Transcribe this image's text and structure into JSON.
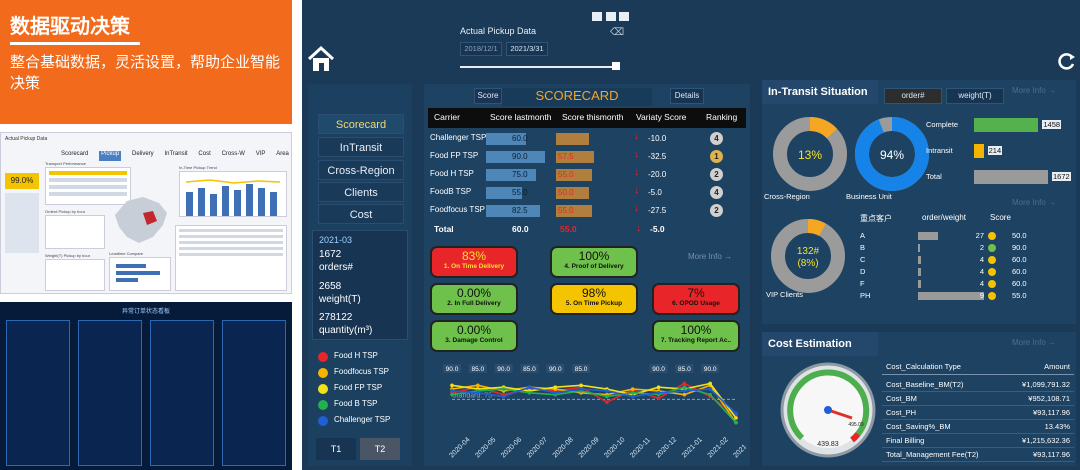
{
  "banner": {
    "title": "数据驱动决策",
    "subtitle": "整合基础数据，灵活设置，帮助企业智能决策"
  },
  "thumb1": {
    "title": "Actual Pickup Data",
    "tabs": [
      "Scorecard",
      "Pickup",
      "Delivery",
      "InTransit",
      "Cost",
      "Cross-W",
      "VIP",
      "Area"
    ],
    "kpi": "99.0%",
    "panels": [
      "Transport Performance",
      "In-Time Pickup Trend",
      "Order# Pickup by hour",
      "Weight(T) Pickup by hour",
      "Leadtime Compare"
    ]
  },
  "thumb2": {
    "title": "异常订单状态看板"
  },
  "header": {
    "actual_pickup": "Actual Pickup Data",
    "date_from": "2018/12/1",
    "date_to": "2021/3/31"
  },
  "nav": {
    "items": [
      "Scorecard",
      "InTransit",
      "Cross-Region",
      "Clients",
      "Cost"
    ]
  },
  "summary": {
    "period": "2021-03",
    "orders_value": "1672",
    "orders_label": "orders#",
    "weight_value": "2658",
    "weight_label": "weight(T)",
    "quantity_value": "278122",
    "quantity_label": "quantity(m³)"
  },
  "legend": [
    {
      "name": "Food H TSP",
      "color": "#e8262a"
    },
    {
      "name": "Foodfocus TSP",
      "color": "#f5b400"
    },
    {
      "name": "Food FP TSP",
      "color": "#f2e21a"
    },
    {
      "name": "Food B TSP",
      "color": "#22b14c"
    },
    {
      "name": "Challenger TSP",
      "color": "#1f5fd6"
    }
  ],
  "period_buttons": [
    "T1",
    "T2"
  ],
  "scorecard": {
    "title": "SCORECARD",
    "score_btn": "Score",
    "details_btn": "Details",
    "columns": [
      "Carrier",
      "Score lastmonth",
      "Score thismonth",
      "Variaty Score",
      "Ranking"
    ],
    "rows": [
      {
        "carrier": "Challenger TSP",
        "last": "60.0",
        "this": "",
        "var": "-10.0",
        "rank": "4",
        "last_v": 60,
        "this_v": 50
      },
      {
        "carrier": "Food FP TSP",
        "last": "90.0",
        "this": "57.5",
        "var": "-32.5",
        "rank": "1",
        "last_v": 90,
        "this_v": 57.5
      },
      {
        "carrier": "Food H TSP",
        "last": "75.0",
        "this": "55.0",
        "var": "-20.0",
        "rank": "2",
        "last_v": 75,
        "this_v": 55
      },
      {
        "carrier": "FoodB TSP",
        "last": "55.0",
        "this": "50.0",
        "var": "-5.0",
        "rank": "4",
        "last_v": 55,
        "this_v": 50
      },
      {
        "carrier": "Foodfocus TSP",
        "last": "82.5",
        "this": "55.0",
        "var": "-27.5",
        "rank": "2",
        "last_v": 82.5,
        "this_v": 55
      }
    ],
    "total": {
      "label": "Total",
      "last": "60.0",
      "this": "55.0",
      "var": "-5.0"
    }
  },
  "kpis": [
    {
      "value": "83%",
      "label": "1. On Time Delivery",
      "color": "#e8262a",
      "text": "#f5e32a"
    },
    {
      "value": "100%",
      "label": "4. Proof of Delivery",
      "color": "#6ec14a",
      "text": "#111"
    },
    {
      "value": "0.00%",
      "label": "2. In Full Delivery",
      "color": "#6ec14a",
      "text": "#111"
    },
    {
      "value": "98%",
      "label": "5. On Time Pickup",
      "color": "#f5c400",
      "text": "#111"
    },
    {
      "value": "7%",
      "label": "6. OPOD Usage",
      "color": "#e8262a",
      "text": "#111"
    },
    {
      "value": "0.00%",
      "label": "3. Damage Control",
      "color": "#6ec14a",
      "text": "#111"
    },
    {
      "value": "100%",
      "label": "7. Tracking Report Ac..",
      "color": "#6ec14a",
      "text": "#111"
    }
  ],
  "more_info": "More Info",
  "chart_data": {
    "type": "line",
    "x": [
      "2020-04",
      "2020-05",
      "2020-06",
      "2020-07",
      "2020-08",
      "2020-09",
      "2020-10",
      "2020-11",
      "2020-12",
      "2021-01",
      "2021-02",
      "2021-03"
    ],
    "standard_label": "Standard: 75",
    "standard": 75,
    "top_labels": [
      "90.0",
      "85.0",
      "90.0",
      "85.0",
      "90.0",
      "85.0",
      "",
      "",
      "90.0",
      "85.0",
      "90.0",
      ""
    ],
    "series": [
      {
        "name": "Food H TSP",
        "values": [
          82,
          88,
          80,
          86,
          84,
          88,
          72,
          85,
          76,
          92,
          78,
          58
        ]
      },
      {
        "name": "Foodfocus TSP",
        "values": [
          86,
          90,
          84,
          88,
          86,
          82,
          80,
          86,
          84,
          80,
          90,
          50
        ]
      },
      {
        "name": "Food FP TSP",
        "values": [
          90,
          86,
          88,
          84,
          88,
          90,
          86,
          80,
          88,
          86,
          92,
          55
        ]
      },
      {
        "name": "Food B TSP",
        "values": [
          80,
          84,
          86,
          82,
          80,
          84,
          78,
          82,
          80,
          88,
          80,
          50
        ]
      },
      {
        "name": "Challenger TSP",
        "values": [
          84,
          82,
          78,
          88,
          82,
          86,
          84,
          78,
          82,
          84,
          86,
          60
        ]
      }
    ],
    "ylim": [
      40,
      100
    ]
  },
  "intransit": {
    "title": "In-Transit Situation",
    "btn_order": "order#",
    "btn_weight": "weight(T)",
    "more": "More Info",
    "donut1": {
      "value": "13%",
      "label": "Cross-Region",
      "pct": 13
    },
    "donut2": {
      "value": "94%",
      "label": "Business Unit",
      "pct": 94
    },
    "bars": [
      {
        "label": "Complete",
        "value": "1458",
        "frac": 0.87,
        "color": "#55b14d"
      },
      {
        "label": "Intransit",
        "value": "214",
        "frac": 0.13,
        "color": "#f5b400"
      },
      {
        "label": "Total",
        "value": "1672",
        "frac": 1.0,
        "color": "#9a9a9a"
      }
    ],
    "donut3": {
      "value": "132#\n(8%)",
      "line1": "132#",
      "line2": "(8%)",
      "label": "VIP Clients",
      "pct": 8
    },
    "vip_cols": [
      "重点客户",
      "order/weight",
      "Score"
    ],
    "vip_rows": [
      {
        "c": "A",
        "n": "27",
        "s": "50.0",
        "f": 0.3,
        "dot": "#f5c400"
      },
      {
        "c": "B",
        "n": "2",
        "s": "90.0",
        "f": 0.03,
        "dot": "#6ec14a"
      },
      {
        "c": "C",
        "n": "4",
        "s": "60.0",
        "f": 0.05,
        "dot": "#f5c400"
      },
      {
        "c": "D",
        "n": "4",
        "s": "60.0",
        "f": 0.05,
        "dot": "#f5c400"
      },
      {
        "c": "F",
        "n": "4",
        "s": "60.0",
        "f": 0.05,
        "dot": "#f5c400"
      },
      {
        "c": "PH",
        "n": "9",
        "s": "55.0",
        "f": 1.0,
        "dot": "#f5c400"
      }
    ]
  },
  "cost": {
    "title": "Cost Estimation",
    "more": "More Info",
    "gauge_min": "439.83",
    "gauge_val": "495.09",
    "cols": [
      "Cost_Calculation Type",
      "Amount"
    ],
    "rows": [
      {
        "k": "Cost_Baseline_BM(T2)",
        "v": "¥1,099,791.32"
      },
      {
        "k": "Cost_BM",
        "v": "¥952,108.71"
      },
      {
        "k": "Cost_PH",
        "v": "¥93,117.96"
      },
      {
        "k": "Cost_Saving%_BM",
        "v": "13.43%"
      },
      {
        "k": "Final Billing",
        "v": "¥1,215,632.36"
      },
      {
        "k": "Total_Management Fee(T2)",
        "v": "¥93,117.96"
      }
    ]
  }
}
